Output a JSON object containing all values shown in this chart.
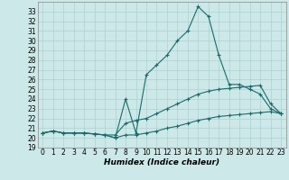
{
  "xlabel": "Humidex (Indice chaleur)",
  "bg_color": "#cce8e8",
  "grid_color": "#b0d0d0",
  "line_color": "#1a6b6b",
  "x": [
    0,
    1,
    2,
    3,
    4,
    5,
    6,
    7,
    8,
    9,
    10,
    11,
    12,
    13,
    14,
    15,
    16,
    17,
    18,
    19,
    20,
    21,
    22,
    23
  ],
  "y_max": [
    20.5,
    20.7,
    20.5,
    20.5,
    20.5,
    20.4,
    20.3,
    20.0,
    24.0,
    20.5,
    26.5,
    27.5,
    28.5,
    30.0,
    31.0,
    33.5,
    32.5,
    28.5,
    25.5,
    25.5,
    25.0,
    24.5,
    23.0,
    22.5
  ],
  "y_mean": [
    20.5,
    20.7,
    20.5,
    20.5,
    20.5,
    20.4,
    20.3,
    20.3,
    21.5,
    21.8,
    22.0,
    22.5,
    23.0,
    23.5,
    24.0,
    24.5,
    24.8,
    25.0,
    25.1,
    25.2,
    25.3,
    25.4,
    23.5,
    22.5
  ],
  "y_min": [
    20.5,
    20.7,
    20.5,
    20.5,
    20.5,
    20.4,
    20.3,
    20.0,
    20.3,
    20.3,
    20.5,
    20.7,
    21.0,
    21.2,
    21.5,
    21.8,
    22.0,
    22.2,
    22.3,
    22.4,
    22.5,
    22.6,
    22.7,
    22.5
  ],
  "ylim": [
    19,
    34
  ],
  "xlim": [
    -0.5,
    23.5
  ],
  "yticks": [
    19,
    20,
    21,
    22,
    23,
    24,
    25,
    26,
    27,
    28,
    29,
    30,
    31,
    32,
    33
  ],
  "xticks": [
    0,
    1,
    2,
    3,
    4,
    5,
    6,
    7,
    8,
    9,
    10,
    11,
    12,
    13,
    14,
    15,
    16,
    17,
    18,
    19,
    20,
    21,
    22,
    23
  ],
  "tick_fontsize": 5.5,
  "xlabel_fontsize": 6.5
}
